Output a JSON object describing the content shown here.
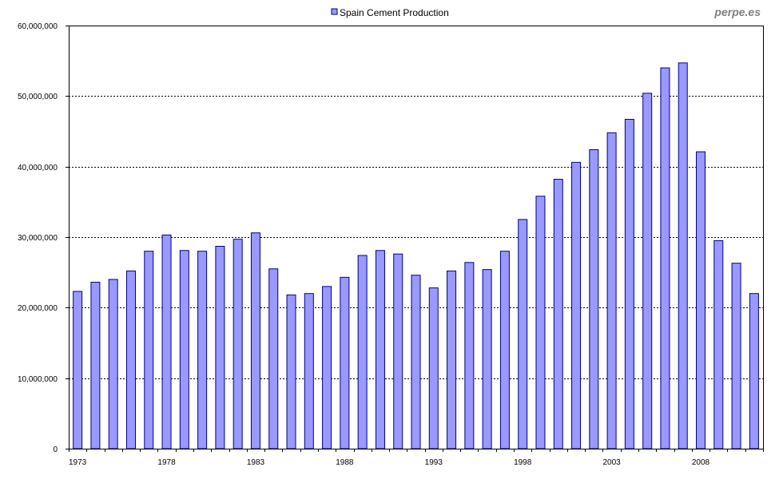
{
  "watermark": "perpe.es",
  "chart_data": {
    "type": "bar",
    "title": "",
    "xlabel": "",
    "ylabel": "",
    "ylim": [
      0,
      60000000
    ],
    "yticks": [
      0,
      10000000,
      20000000,
      30000000,
      40000000,
      50000000,
      60000000
    ],
    "ytick_labels": [
      "0",
      "10,000,000",
      "20,000,000",
      "30,000,000",
      "40,000,000",
      "50,000,000",
      "60,000,000"
    ],
    "xtick_labels": [
      "1973",
      "1978",
      "1983",
      "1988",
      "1993",
      "1998",
      "2003",
      "2008"
    ],
    "grid": true,
    "legend_position": "top-center",
    "colors": {
      "bar_fill": "#9999ff",
      "bar_stroke": "#000080",
      "gridline": "#000000",
      "plot_border": "#000000",
      "watermark": "#808080"
    },
    "categories": [
      "1973",
      "1974",
      "1975",
      "1976",
      "1977",
      "1978",
      "1979",
      "1980",
      "1981",
      "1982",
      "1983",
      "1984",
      "1985",
      "1986",
      "1987",
      "1988",
      "1989",
      "1990",
      "1991",
      "1992",
      "1993",
      "1994",
      "1995",
      "1996",
      "1997",
      "1998",
      "1999",
      "2000",
      "2001",
      "2002",
      "2003",
      "2004",
      "2005",
      "2006",
      "2007",
      "2008",
      "2009",
      "2010",
      "2011"
    ],
    "series": [
      {
        "name": "Spain Cement Production",
        "values": [
          22300000,
          23600000,
          24000000,
          25200000,
          28000000,
          30300000,
          28100000,
          28000000,
          28700000,
          29700000,
          30600000,
          25500000,
          21800000,
          22000000,
          23000000,
          24300000,
          27400000,
          28100000,
          27600000,
          24600000,
          22800000,
          25200000,
          26400000,
          25400000,
          28000000,
          32500000,
          35800000,
          38200000,
          40600000,
          42400000,
          44800000,
          46700000,
          50400000,
          54000000,
          54700000,
          42100000,
          29500000,
          26300000,
          22000000
        ]
      }
    ]
  }
}
